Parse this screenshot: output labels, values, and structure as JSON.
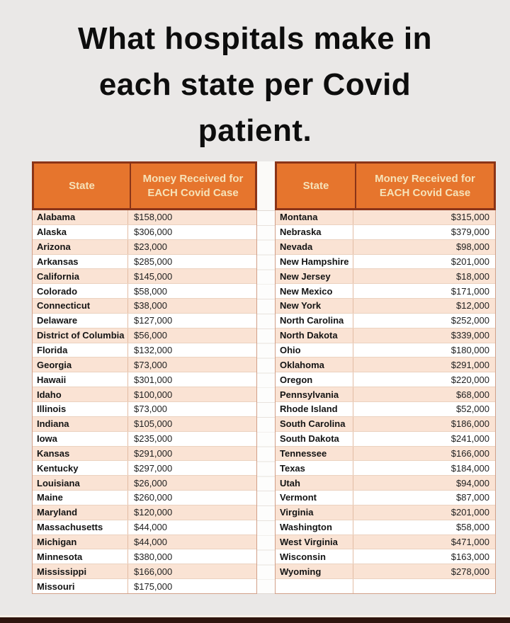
{
  "title": {
    "lines": [
      "What hospitals make in",
      "each state per Covid",
      "patient."
    ]
  },
  "table_header": {
    "state_label": "State",
    "money_label": "Money Received for EACH Covid Case"
  },
  "colors": {
    "page_background": "#EAE8E7",
    "header_background": "#E6752D",
    "header_text": "#F6E2B8",
    "header_border": "#8A3418",
    "row_odd": "#FAE3D4",
    "row_even": "#FFFFFF",
    "bottom_bar": "#2F150E"
  },
  "left_table": {
    "rows": [
      {
        "state": "Alabama",
        "amount": "$158,000"
      },
      {
        "state": "Alaska",
        "amount": "$306,000"
      },
      {
        "state": "Arizona",
        "amount": "$23,000"
      },
      {
        "state": "Arkansas",
        "amount": "$285,000"
      },
      {
        "state": "California",
        "amount": "$145,000"
      },
      {
        "state": "Colorado",
        "amount": "$58,000"
      },
      {
        "state": "Connecticut",
        "amount": "$38,000"
      },
      {
        "state": "Delaware",
        "amount": "$127,000"
      },
      {
        "state": "District of Columbia",
        "amount": "$56,000"
      },
      {
        "state": "Florida",
        "amount": "$132,000"
      },
      {
        "state": "Georgia",
        "amount": "$73,000"
      },
      {
        "state": "Hawaii",
        "amount": "$301,000"
      },
      {
        "state": "Idaho",
        "amount": "$100,000"
      },
      {
        "state": "Illinois",
        "amount": "$73,000"
      },
      {
        "state": "Indiana",
        "amount": "$105,000"
      },
      {
        "state": "Iowa",
        "amount": "$235,000"
      },
      {
        "state": "Kansas",
        "amount": "$291,000"
      },
      {
        "state": "Kentucky",
        "amount": "$297,000"
      },
      {
        "state": "Louisiana",
        "amount": "$26,000"
      },
      {
        "state": "Maine",
        "amount": "$260,000"
      },
      {
        "state": "Maryland",
        "amount": "$120,000"
      },
      {
        "state": "Massachusetts",
        "amount": "$44,000"
      },
      {
        "state": "Michigan",
        "amount": "$44,000"
      },
      {
        "state": "Minnesota",
        "amount": "$380,000"
      },
      {
        "state": "Mississippi",
        "amount": "$166,000"
      },
      {
        "state": "Missouri",
        "amount": "$175,000"
      }
    ]
  },
  "right_table": {
    "rows": [
      {
        "state": "Montana",
        "amount": "$315,000"
      },
      {
        "state": "Nebraska",
        "amount": "$379,000"
      },
      {
        "state": "Nevada",
        "amount": "$98,000"
      },
      {
        "state": "New Hampshire",
        "amount": "$201,000"
      },
      {
        "state": "New Jersey",
        "amount": "$18,000"
      },
      {
        "state": "New Mexico",
        "amount": "$171,000"
      },
      {
        "state": "New York",
        "amount": "$12,000"
      },
      {
        "state": "North Carolina",
        "amount": "$252,000"
      },
      {
        "state": "North Dakota",
        "amount": "$339,000"
      },
      {
        "state": "Ohio",
        "amount": "$180,000"
      },
      {
        "state": "Oklahoma",
        "amount": "$291,000"
      },
      {
        "state": "Oregon",
        "amount": "$220,000"
      },
      {
        "state": "Pennsylvania",
        "amount": "$68,000"
      },
      {
        "state": "Rhode Island",
        "amount": "$52,000"
      },
      {
        "state": "South Carolina",
        "amount": "$186,000"
      },
      {
        "state": "South Dakota",
        "amount": "$241,000"
      },
      {
        "state": "Tennessee",
        "amount": "$166,000"
      },
      {
        "state": "Texas",
        "amount": "$184,000"
      },
      {
        "state": "Utah",
        "amount": "$94,000"
      },
      {
        "state": "Vermont",
        "amount": "$87,000"
      },
      {
        "state": "Virginia",
        "amount": "$201,000"
      },
      {
        "state": "Washington",
        "amount": "$58,000"
      },
      {
        "state": "West Virginia",
        "amount": "$471,000"
      },
      {
        "state": "Wisconsin",
        "amount": "$163,000"
      },
      {
        "state": "Wyoming",
        "amount": "$278,000"
      },
      {
        "state": "",
        "amount": ""
      }
    ]
  }
}
